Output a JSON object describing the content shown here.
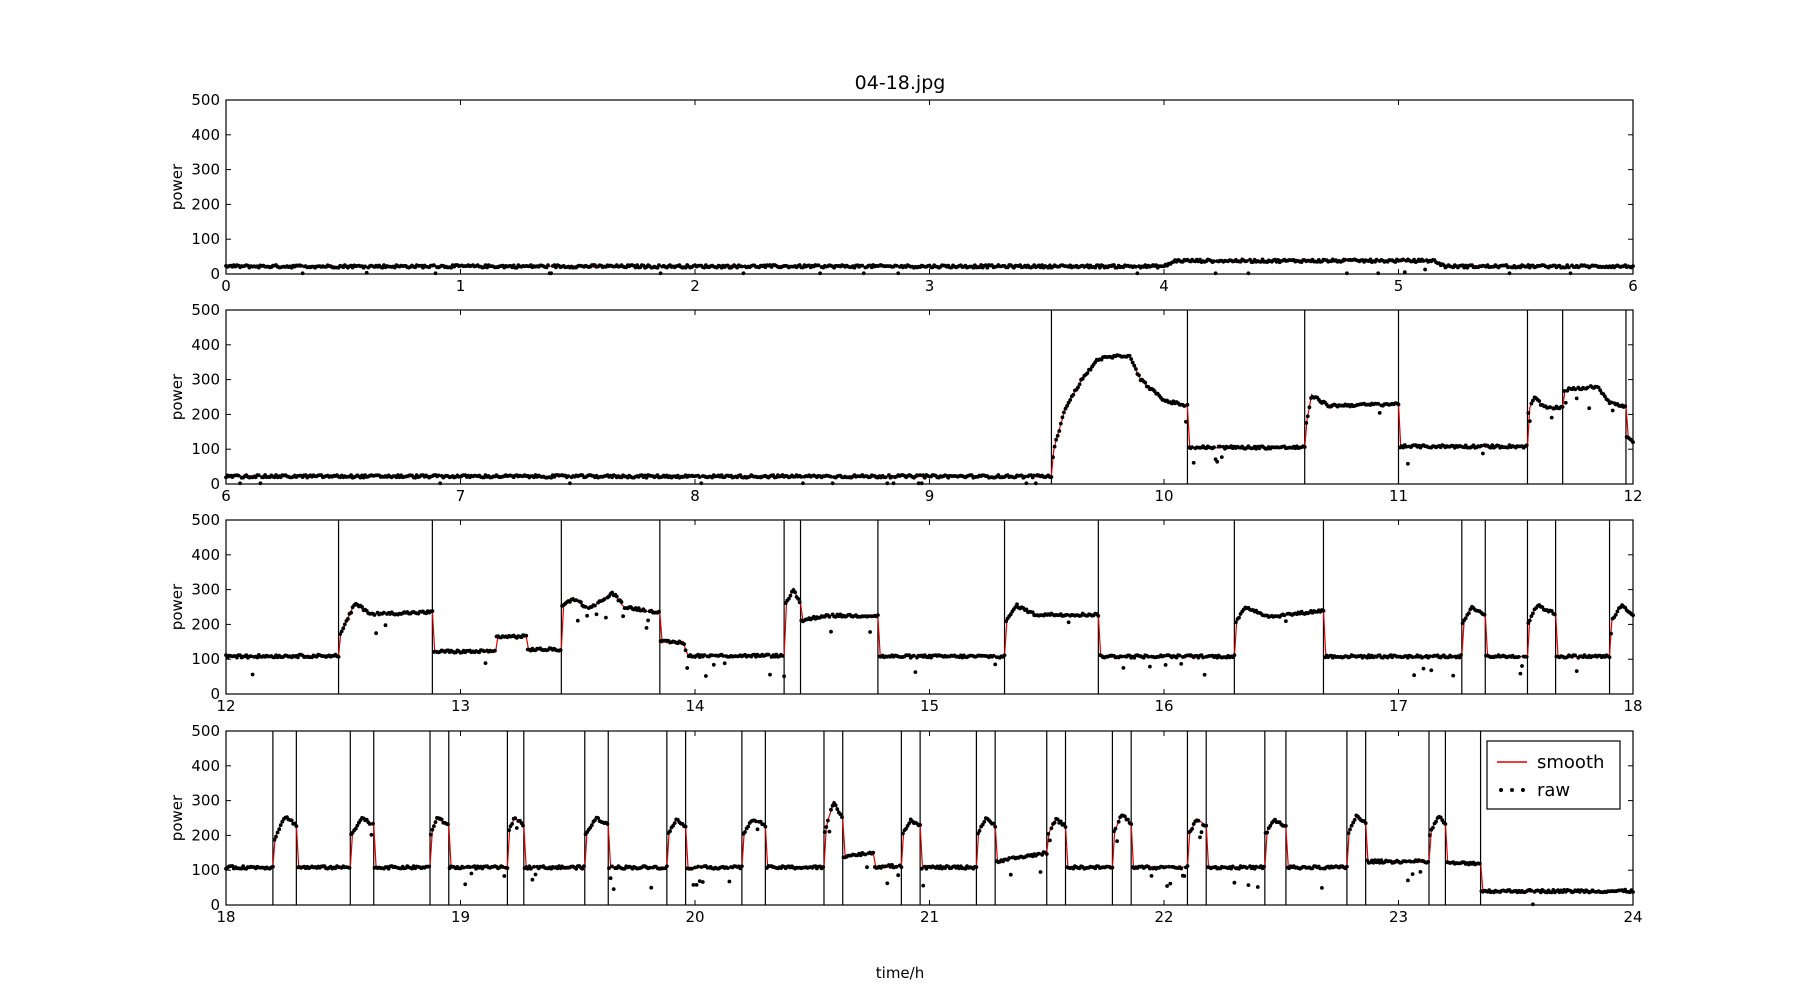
{
  "chart_data": {
    "type": "scatter",
    "title": "04-18.jpg",
    "xlabel": "time/h",
    "ylabel": "power",
    "ylim": [
      0,
      500
    ],
    "yticks": [
      "0",
      "100",
      "200",
      "300",
      "400",
      "500"
    ],
    "grid": false,
    "legend": {
      "placement": "inside top-right of last panel",
      "entries": [
        "smooth",
        "raw"
      ]
    },
    "colors": {
      "smooth": "#e00000",
      "raw": "#000000",
      "axes": "#000000"
    },
    "series": [
      {
        "name": "smooth",
        "kind": "line"
      },
      {
        "name": "raw",
        "kind": "dots"
      }
    ],
    "panels": [
      {
        "xlim": [
          0,
          6
        ],
        "xticks": [
          "0",
          "1",
          "2",
          "3",
          "4",
          "5",
          "6"
        ],
        "events": [],
        "profile": [
          [
            0,
            22
          ],
          [
            4.0,
            22
          ],
          [
            4.05,
            38
          ],
          [
            5.15,
            38
          ],
          [
            5.2,
            22
          ],
          [
            6.0,
            22
          ]
        ]
      },
      {
        "xlim": [
          6,
          12
        ],
        "xticks": [
          "6",
          "7",
          "8",
          "9",
          "10",
          "11",
          "12"
        ],
        "events": [
          9.52,
          10.1,
          10.6,
          11.0,
          11.55,
          11.7,
          11.97
        ],
        "profile": [
          [
            6,
            22
          ],
          [
            9.52,
            22
          ],
          [
            9.53,
            100
          ],
          [
            9.58,
            220
          ],
          [
            9.65,
            300
          ],
          [
            9.72,
            360
          ],
          [
            9.85,
            370
          ],
          [
            9.9,
            300
          ],
          [
            10.0,
            240
          ],
          [
            10.1,
            225
          ],
          [
            10.1,
            105
          ],
          [
            10.6,
            105
          ],
          [
            10.6,
            150
          ],
          [
            10.63,
            255
          ],
          [
            10.7,
            225
          ],
          [
            11.0,
            230
          ],
          [
            11.0,
            108
          ],
          [
            11.55,
            108
          ],
          [
            11.55,
            200
          ],
          [
            11.58,
            250
          ],
          [
            11.62,
            220
          ],
          [
            11.7,
            220
          ],
          [
            11.7,
            270
          ],
          [
            11.85,
            280
          ],
          [
            11.9,
            235
          ],
          [
            11.97,
            220
          ],
          [
            11.97,
            140
          ],
          [
            12.0,
            120
          ]
        ]
      },
      {
        "xlim": [
          12,
          18
        ],
        "xticks": [
          "12",
          "13",
          "14",
          "15",
          "16",
          "17",
          "18"
        ],
        "events": [
          12.48,
          12.88,
          13.43,
          13.85,
          14.38,
          14.45,
          14.78,
          15.32,
          15.72,
          16.3,
          16.68,
          17.27,
          17.37,
          17.55,
          17.67,
          17.9
        ],
        "profile": [
          [
            12,
            108
          ],
          [
            12.48,
            110
          ],
          [
            12.48,
            160
          ],
          [
            12.55,
            260
          ],
          [
            12.62,
            230
          ],
          [
            12.88,
            235
          ],
          [
            12.88,
            122
          ],
          [
            13.15,
            122
          ],
          [
            13.15,
            165
          ],
          [
            13.28,
            165
          ],
          [
            13.28,
            128
          ],
          [
            13.43,
            128
          ],
          [
            13.43,
            250
          ],
          [
            13.48,
            275
          ],
          [
            13.55,
            245
          ],
          [
            13.65,
            290
          ],
          [
            13.7,
            250
          ],
          [
            13.85,
            235
          ],
          [
            13.85,
            150
          ],
          [
            13.95,
            148
          ],
          [
            13.97,
            110
          ],
          [
            14.38,
            110
          ],
          [
            14.38,
            250
          ],
          [
            14.42,
            300
          ],
          [
            14.45,
            260
          ],
          [
            14.45,
            210
          ],
          [
            14.55,
            225
          ],
          [
            14.78,
            225
          ],
          [
            14.78,
            108
          ],
          [
            15.32,
            108
          ],
          [
            15.32,
            200
          ],
          [
            15.37,
            255
          ],
          [
            15.45,
            228
          ],
          [
            15.72,
            228
          ],
          [
            15.72,
            108
          ],
          [
            16.3,
            108
          ],
          [
            16.3,
            200
          ],
          [
            16.35,
            250
          ],
          [
            16.45,
            222
          ],
          [
            16.68,
            240
          ],
          [
            16.68,
            108
          ],
          [
            17.27,
            108
          ],
          [
            17.27,
            200
          ],
          [
            17.31,
            248
          ],
          [
            17.37,
            230
          ],
          [
            17.37,
            108
          ],
          [
            17.55,
            108
          ],
          [
            17.55,
            200
          ],
          [
            17.59,
            255
          ],
          [
            17.67,
            230
          ],
          [
            17.67,
            108
          ],
          [
            17.9,
            108
          ],
          [
            17.9,
            200
          ],
          [
            17.95,
            255
          ],
          [
            18.0,
            225
          ]
        ]
      },
      {
        "xlim": [
          18,
          24
        ],
        "xticks": [
          "18",
          "19",
          "20",
          "21",
          "22",
          "23",
          "24"
        ],
        "events": [
          18.2,
          18.3,
          18.53,
          18.63,
          18.87,
          18.95,
          19.2,
          19.27,
          19.53,
          19.63,
          19.88,
          19.96,
          20.2,
          20.3,
          20.55,
          20.63,
          20.88,
          20.96,
          21.2,
          21.28,
          21.5,
          21.58,
          21.78,
          21.86,
          22.1,
          22.18,
          22.43,
          22.52,
          22.78,
          22.86,
          23.13,
          23.2,
          23.35
        ],
        "profile": [
          [
            18,
            108
          ],
          [
            18.2,
            108
          ],
          [
            18.2,
            180
          ],
          [
            18.25,
            255
          ],
          [
            18.3,
            230
          ],
          [
            18.3,
            108
          ],
          [
            18.53,
            108
          ],
          [
            18.53,
            200
          ],
          [
            18.58,
            250
          ],
          [
            18.63,
            230
          ],
          [
            18.63,
            108
          ],
          [
            18.87,
            108
          ],
          [
            18.87,
            200
          ],
          [
            18.9,
            250
          ],
          [
            18.95,
            230
          ],
          [
            18.95,
            108
          ],
          [
            19.2,
            108
          ],
          [
            19.2,
            200
          ],
          [
            19.23,
            250
          ],
          [
            19.27,
            230
          ],
          [
            19.27,
            108
          ],
          [
            19.53,
            108
          ],
          [
            19.53,
            200
          ],
          [
            19.58,
            250
          ],
          [
            19.63,
            230
          ],
          [
            19.63,
            108
          ],
          [
            19.88,
            108
          ],
          [
            19.88,
            200
          ],
          [
            19.92,
            245
          ],
          [
            19.96,
            225
          ],
          [
            19.96,
            108
          ],
          [
            20.2,
            108
          ],
          [
            20.2,
            200
          ],
          [
            20.25,
            248
          ],
          [
            20.3,
            228
          ],
          [
            20.3,
            108
          ],
          [
            20.55,
            108
          ],
          [
            20.55,
            200
          ],
          [
            20.59,
            295
          ],
          [
            20.63,
            250
          ],
          [
            20.63,
            140
          ],
          [
            20.76,
            150
          ],
          [
            20.76,
            110
          ],
          [
            20.88,
            112
          ],
          [
            20.88,
            200
          ],
          [
            20.92,
            245
          ],
          [
            20.96,
            228
          ],
          [
            20.96,
            108
          ],
          [
            21.2,
            108
          ],
          [
            21.2,
            200
          ],
          [
            21.24,
            248
          ],
          [
            21.28,
            228
          ],
          [
            21.28,
            125
          ],
          [
            21.5,
            150
          ],
          [
            21.5,
            200
          ],
          [
            21.54,
            245
          ],
          [
            21.58,
            228
          ],
          [
            21.58,
            108
          ],
          [
            21.78,
            108
          ],
          [
            21.78,
            200
          ],
          [
            21.82,
            260
          ],
          [
            21.86,
            235
          ],
          [
            21.86,
            108
          ],
          [
            22.1,
            108
          ],
          [
            22.1,
            200
          ],
          [
            22.14,
            245
          ],
          [
            22.18,
            228
          ],
          [
            22.18,
            108
          ],
          [
            22.43,
            108
          ],
          [
            22.43,
            200
          ],
          [
            22.47,
            245
          ],
          [
            22.52,
            225
          ],
          [
            22.52,
            108
          ],
          [
            22.78,
            108
          ],
          [
            22.78,
            200
          ],
          [
            22.82,
            255
          ],
          [
            22.86,
            235
          ],
          [
            22.86,
            125
          ],
          [
            23.13,
            125
          ],
          [
            23.13,
            200
          ],
          [
            23.17,
            255
          ],
          [
            23.2,
            235
          ],
          [
            23.2,
            120
          ],
          [
            23.35,
            120
          ],
          [
            23.35,
            40
          ],
          [
            24.0,
            40
          ]
        ]
      }
    ]
  }
}
